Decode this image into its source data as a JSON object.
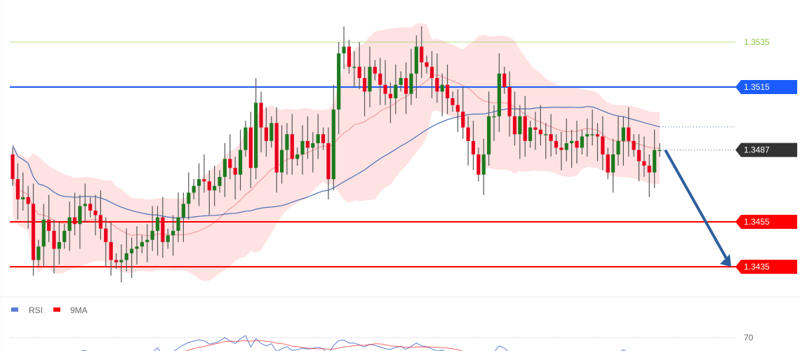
{
  "chart_data": {
    "type": "candlestick",
    "ylim": [
      1.3425,
      1.3545
    ],
    "open_first": 1.3485,
    "closes": [
      1.3474,
      1.3465,
      1.3466,
      1.3463,
      1.3438,
      1.3444,
      1.3456,
      1.3451,
      1.3443,
      1.3446,
      1.3451,
      1.3457,
      1.3454,
      1.3462,
      1.3463,
      1.346,
      1.3458,
      1.3452,
      1.3446,
      1.3438,
      1.3437,
      1.3438,
      1.3441,
      1.3443,
      1.3444,
      1.3446,
      1.3447,
      1.3451,
      1.3457,
      1.3446,
      1.3449,
      1.3451,
      1.3457,
      1.3463,
      1.3468,
      1.3471,
      1.3474,
      1.3473,
      1.3469,
      1.3471,
      1.3475,
      1.3483,
      1.3479,
      1.3476,
      1.3487,
      1.3497,
      1.3479,
      1.3508,
      1.3497,
      1.3491,
      1.3499,
      1.3477,
      1.3487,
      1.3494,
      1.3483,
      1.3485,
      1.3491,
      1.3488,
      1.349,
      1.3494,
      1.349,
      1.3474,
      1.3505,
      1.353,
      1.3533,
      1.3524,
      1.3524,
      1.3519,
      1.3513,
      1.3524,
      1.3521,
      1.3516,
      1.3512,
      1.351,
      1.3516,
      1.3519,
      1.3512,
      1.3521,
      1.3533,
      1.3526,
      1.3524,
      1.3519,
      1.3513,
      1.3516,
      1.351,
      1.3507,
      1.3504,
      1.3497,
      1.3491,
      1.3485,
      1.3476,
      1.3485,
      1.3502,
      1.3502,
      1.3521,
      1.3515,
      1.3502,
      1.3494,
      1.3502,
      1.3491,
      1.3497,
      1.3496,
      1.3494,
      1.3494,
      1.3491,
      1.3488,
      1.3487,
      1.349,
      1.3491,
      1.3488,
      1.3493,
      1.3494,
      1.3494,
      1.3493,
      1.3485,
      1.3477,
      1.3485,
      1.3491,
      1.3497,
      1.3491,
      1.3487,
      1.3482,
      1.348,
      1.3477,
      1.3487,
      1.3487
    ],
    "levels": [
      {
        "value": "1.3535",
        "price": 1.3535,
        "color": "#8cc63f",
        "style": "text"
      },
      {
        "value": "1.3515",
        "price": 1.3515,
        "color": "#1a5cff",
        "style": "tag"
      },
      {
        "value": "1.3487",
        "price": 1.3487,
        "color": "#333333",
        "style": "tag-current"
      },
      {
        "value": "1.3455",
        "price": 1.3455,
        "color": "#ff0000",
        "style": "tag"
      },
      {
        "value": "1.3435",
        "price": 1.3435,
        "color": "#ff0000",
        "style": "tag"
      }
    ],
    "forecast_arrow": {
      "from": 1.3487,
      "to": 1.3435,
      "color": "#2f5f9e"
    },
    "colors": {
      "up": "#1e7a1e",
      "down": "#e8001c",
      "band": "#ffd6d6",
      "ma_fast": "#f4a0a0",
      "ma_slow": "#4a6fb5"
    },
    "rsi_panel": {
      "legend": [
        {
          "name": "RSI",
          "color": "#5b7fd6"
        },
        {
          "name": "9MA",
          "color": "#ff0000"
        }
      ],
      "level_label": "70"
    }
  }
}
